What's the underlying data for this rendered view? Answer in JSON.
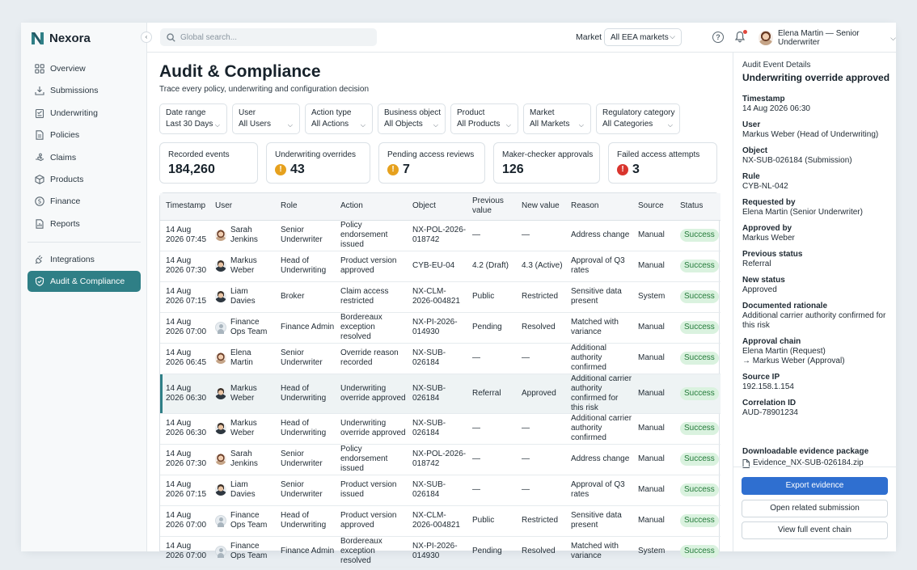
{
  "brand": {
    "name": "Nexora"
  },
  "sidebar": {
    "items": [
      {
        "label": "Overview",
        "icon": "grid-icon"
      },
      {
        "label": "Submissions",
        "icon": "download-icon"
      },
      {
        "label": "Underwriting",
        "icon": "clipboard-icon"
      },
      {
        "label": "Policies",
        "icon": "document-icon"
      },
      {
        "label": "Claims",
        "icon": "hand-icon"
      },
      {
        "label": "Products",
        "icon": "box-icon"
      },
      {
        "label": "Finance",
        "icon": "dollar-icon"
      },
      {
        "label": "Reports",
        "icon": "report-icon"
      }
    ],
    "secondary": [
      {
        "label": "Integrations",
        "icon": "plug-icon"
      },
      {
        "label": "Audit & Compliance",
        "icon": "shield-icon",
        "active": true
      }
    ]
  },
  "topbar": {
    "search_placeholder": "Global search...",
    "market_label": "Market",
    "market_value": "All EEA markets",
    "user_label": "Elena Martin — Senior Underwriter"
  },
  "page": {
    "title": "Audit & Compliance",
    "subtitle": "Trace every policy, underwriting and configuration decision"
  },
  "filters": [
    {
      "label": "Date range",
      "value": "Last 30 Days"
    },
    {
      "label": "User",
      "value": "All Users"
    },
    {
      "label": "Action type",
      "value": "All Actions"
    },
    {
      "label": "Business object",
      "value": "All Objects"
    },
    {
      "label": "Product",
      "value": "All Products"
    },
    {
      "label": "Market",
      "value": "All Markets"
    },
    {
      "label": "Regulatory category",
      "value": "All Categories"
    }
  ],
  "cards": [
    {
      "label": "Recorded events",
      "value": "184,260",
      "badge": ""
    },
    {
      "label": "Underwriting overrides",
      "value": "43",
      "badge": "warn"
    },
    {
      "label": "Pending access reviews",
      "value": "7",
      "badge": "warn"
    },
    {
      "label": "Maker-checker approvals",
      "value": "126",
      "badge": ""
    },
    {
      "label": "Failed access attempts",
      "value": "3",
      "badge": "err"
    }
  ],
  "table": {
    "headers": [
      "Timestamp",
      "User",
      "Role",
      "Action",
      "Object",
      "Previous value",
      "New value",
      "Reason",
      "Source",
      "Status"
    ],
    "rows": [
      {
        "ts": "14 Aug 2026 07:45",
        "user": "Sarah Jenkins",
        "avatar": "f",
        "role": "Senior Underwriter",
        "action": "Policy endorsement issued",
        "object": "NX-POL-2026-018742",
        "prev": "—",
        "new": "—",
        "reason": "Address change",
        "source": "Manual",
        "status": "Success"
      },
      {
        "ts": "14 Aug 2026 07:30",
        "user": "Markus Weber",
        "avatar": "m",
        "role": "Head of Underwriting",
        "action": "Product version approved",
        "object": "CYB-EU-04",
        "prev": "4.2 (Draft)",
        "new": "4.3 (Active)",
        "reason": "Approval of Q3 rates",
        "source": "Manual",
        "status": "Success"
      },
      {
        "ts": "14 Aug 2026 07:15",
        "user": "Liam Davies",
        "avatar": "m",
        "role": "Broker",
        "action": "Claim access restricted",
        "object": "NX-CLM-2026-004821",
        "prev": "Public",
        "new": "Restricted",
        "reason": "Sensitive data present",
        "source": "System",
        "status": "Success"
      },
      {
        "ts": "14 Aug 2026 07:00",
        "user": "Finance Ops Team",
        "avatar": "g",
        "role": "Finance Admin",
        "action": "Bordereaux exception resolved",
        "object": "NX-PI-2026-014930",
        "prev": "Pending",
        "new": "Resolved",
        "reason": "Matched with variance",
        "source": "Manual",
        "status": "Success"
      },
      {
        "ts": "14 Aug 2026 06:45",
        "user": "Elena Martin",
        "avatar": "f",
        "role": "Senior Underwriter",
        "action": "Override reason recorded",
        "object": "NX-SUB-026184",
        "prev": "—",
        "new": "—",
        "reason": "Additional authority confirmed",
        "source": "Manual",
        "status": "Success"
      },
      {
        "ts": "14 Aug 2026 06:30",
        "user": "Markus Weber",
        "avatar": "m",
        "role": "Head of Underwriting",
        "action": "Underwriting override approved",
        "object": "NX-SUB-026184",
        "prev": "Referral",
        "new": "Approved",
        "reason": "Additional carrier authority confirmed for this risk",
        "source": "Manual",
        "status": "Success",
        "selected": true
      },
      {
        "ts": "14 Aug 2026 06:30",
        "user": "Markus Weber",
        "avatar": "m",
        "role": "Head of Underwriting",
        "action": "Underwriting override approved",
        "object": "NX-SUB-026184",
        "prev": "—",
        "new": "—",
        "reason": "Additional carrier authority confirmed",
        "source": "Manual",
        "status": "Success"
      },
      {
        "ts": "14 Aug 2026 07:30",
        "user": "Sarah Jenkins",
        "avatar": "f",
        "role": "Senior Underwriter",
        "action": "Policy endorsement issued",
        "object": "NX-POL-2026-018742",
        "prev": "—",
        "new": "—",
        "reason": "Address change",
        "source": "Manual",
        "status": "Success"
      },
      {
        "ts": "14 Aug 2026 07:15",
        "user": "Liam Davies",
        "avatar": "m",
        "role": "Senior Underwriter",
        "action": "Product version issued",
        "object": "NX-SUB-026184",
        "prev": "—",
        "new": "—",
        "reason": "Approval of Q3 rates",
        "source": "Manual",
        "status": "Success"
      },
      {
        "ts": "14 Aug 2026 07:00",
        "user": "Finance Ops Team",
        "avatar": "g",
        "role": "Head of Underwriting",
        "action": "Product version approved",
        "object": "NX-CLM-2026-004821",
        "prev": "Public",
        "new": "Restricted",
        "reason": "Sensitive data present",
        "source": "Manual",
        "status": "Success"
      },
      {
        "ts": "14 Aug 2026 07:00",
        "user": "Finance Ops Team",
        "avatar": "g",
        "role": "Finance Admin",
        "action": "Bordereaux exception resolved",
        "object": "NX-PI-2026-014930",
        "prev": "Pending",
        "new": "Resolved",
        "reason": "Matched with variance",
        "source": "System",
        "status": "Success"
      }
    ]
  },
  "panel": {
    "heading": "Audit Event Details",
    "title": "Underwriting override approved",
    "fields": [
      {
        "label": "Timestamp",
        "value": "14 Aug 2026 06:30"
      },
      {
        "label": "User",
        "value": "Markus Weber (Head of Underwriting)"
      },
      {
        "label": "Object",
        "value": "NX-SUB-026184 (Submission)"
      },
      {
        "label": "Rule",
        "value": "CYB-NL-042"
      },
      {
        "label": "Requested by",
        "value": "Elena Martin (Senior Underwriter)"
      },
      {
        "label": "Approved by",
        "value": "Markus Weber"
      },
      {
        "label": "Previous status",
        "value": "Referral"
      },
      {
        "label": "New status",
        "value": "Approved"
      },
      {
        "label": "Documented rationale",
        "value": "Additional carrier authority confirmed for this risk"
      },
      {
        "label": "Approval chain",
        "value": "Elena Martin (Request)",
        "value2": "→ Markus Weber (Approval)"
      },
      {
        "label": "Source IP",
        "value": "192.158.1.154"
      },
      {
        "label": "Correlation ID",
        "value": "AUD-78901234"
      }
    ],
    "evidence_label": "Downloadable evidence package",
    "evidence_file": "Evidence_NX-SUB-026184.zip",
    "buttons": {
      "export": "Export evidence",
      "open_submission": "Open related submission",
      "view_chain": "View full event chain"
    }
  },
  "colors": {
    "accent": "#2f7f86",
    "primary_button": "#2f6fd0",
    "success_bg": "#daf2df",
    "success_text": "#247a3a",
    "warn": "#e6a11e",
    "error": "#d9352e"
  }
}
